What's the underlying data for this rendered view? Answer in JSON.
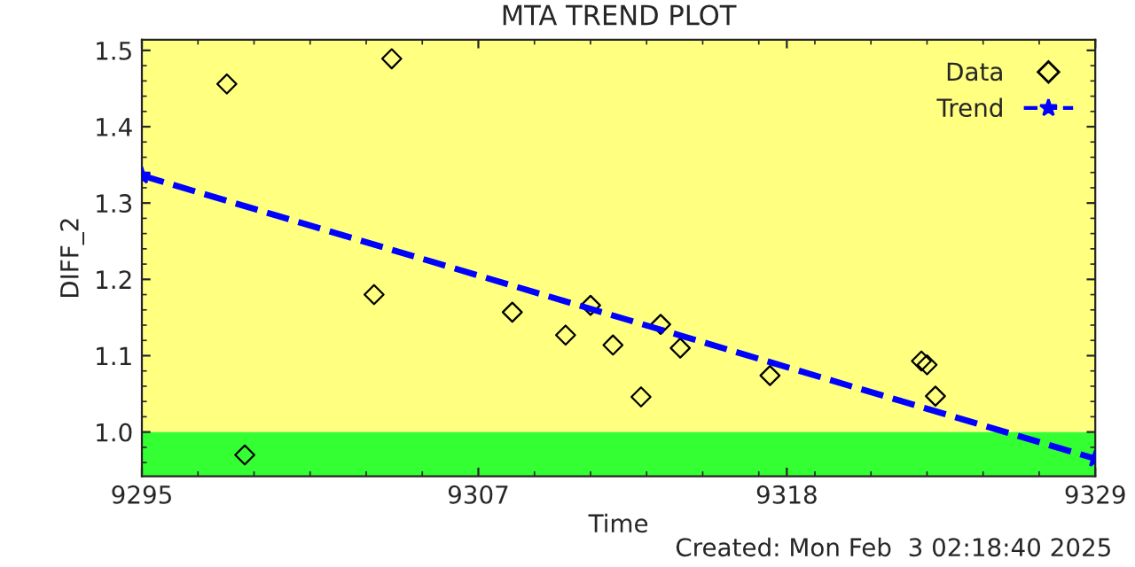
{
  "chart_data": {
    "type": "scatter",
    "title": "MTA TREND PLOT",
    "xlabel": "Time",
    "ylabel": "DIFF_2",
    "annotations": [
      "Created: Mon Feb  3 02:18:40 2025"
    ],
    "series": [
      {
        "name": "Data",
        "color": "#000000",
        "marker": "diamond",
        "x": [
          9298.03,
          9298.67,
          9303.28,
          9303.91,
          9308.21,
          9310.11,
          9311.0,
          9311.8,
          9312.8,
          9313.5,
          9314.2,
          9317.4,
          9322.8,
          9323.0,
          9323.3
        ],
        "values": [
          1.456,
          0.97,
          1.18,
          1.489,
          1.157,
          1.127,
          1.166,
          1.114,
          1.046,
          1.141,
          1.11,
          1.074,
          1.093,
          1.088,
          1.047
        ]
      },
      {
        "name": "Trend",
        "type": "line",
        "color": "#0000ff",
        "marker": "star",
        "line_style": "dashed",
        "x": [
          9295,
          9329
        ],
        "values": [
          1.336,
          0.965
        ]
      }
    ],
    "bands": [
      {
        "axis": "y",
        "from": 1.0,
        "to": 1.514,
        "color": "#ffff80"
      },
      {
        "axis": "y",
        "from": 0.942,
        "to": 1.0,
        "color": "#33ff33"
      }
    ],
    "xlim": [
      9295,
      9329
    ],
    "xticks": [
      9295,
      9307,
      9318,
      9329
    ],
    "ylim": [
      0.942,
      1.514
    ],
    "yticks": [
      {
        "value": 1.0,
        "label": "1.0"
      },
      1.1,
      1.2,
      1.3,
      1.4,
      1.5
    ],
    "grid": false,
    "legend": "top right"
  }
}
